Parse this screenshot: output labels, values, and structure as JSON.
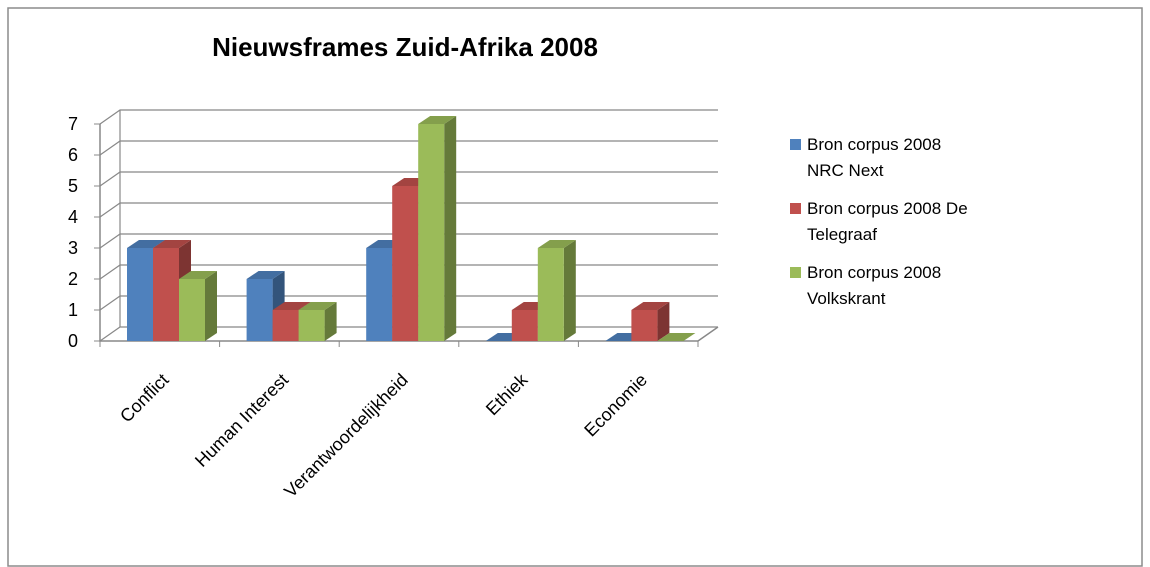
{
  "chart_data": {
    "type": "bar3d",
    "title": "Nieuwsframes Zuid-Afrika 2008",
    "categories": [
      "Conflict",
      "Human Interest",
      "Verantwoordelijkheid",
      "Ethiek",
      "Economie"
    ],
    "series": [
      {
        "name": "Bron corpus 2008 NRC Next",
        "color": "#4f81bd",
        "values": [
          3,
          2,
          3,
          0,
          0
        ]
      },
      {
        "name": "Bron corpus 2008 De Telegraaf",
        "color": "#c0504d",
        "values": [
          3,
          1,
          5,
          1,
          1
        ]
      },
      {
        "name": "Bron corpus 2008 Volkskrant",
        "color": "#9bbb59",
        "values": [
          2,
          1,
          7,
          3,
          0
        ]
      }
    ],
    "ylim": [
      0,
      7
    ],
    "yticks": [
      0,
      1,
      2,
      3,
      4,
      5,
      6,
      7
    ],
    "grid": true,
    "legend": "right"
  }
}
